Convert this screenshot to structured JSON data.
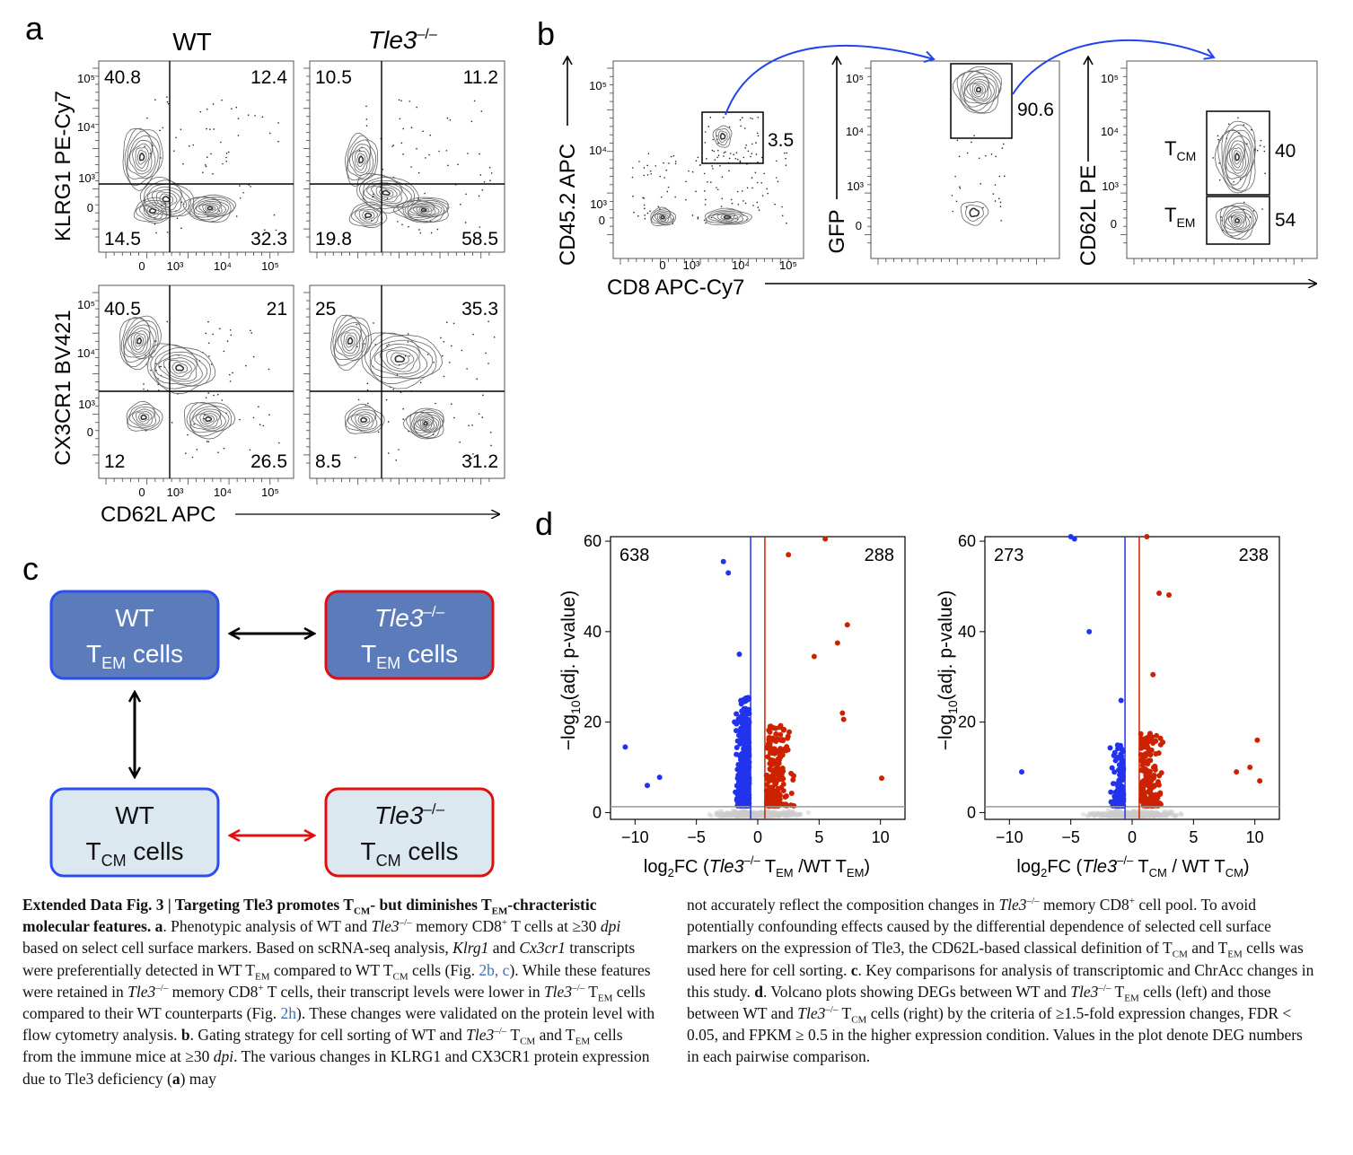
{
  "panel_letters": {
    "a": "a",
    "b": "b",
    "c": "c",
    "d": "d"
  },
  "panel_a": {
    "col_wt": "WT",
    "col_ko": "Tle3",
    "ko_sup": "–/–",
    "row1_ylabel": "KLRG1 PE-Cy7",
    "row2_ylabel": "CX3CR1 BV421",
    "xlabel": "CD62L APC",
    "plots": [
      {
        "q": [
          "40.8",
          "12.4",
          "14.5",
          "32.3"
        ]
      },
      {
        "q": [
          "10.5",
          "11.2",
          "19.8",
          "58.5"
        ]
      },
      {
        "q": [
          "40.5",
          "21",
          "12",
          "26.5"
        ]
      },
      {
        "q": [
          "25",
          "35.3",
          "8.5",
          "31.2"
        ]
      }
    ],
    "yticks": [
      "10⁵",
      "10⁴",
      "10³",
      "0"
    ],
    "xticks": [
      "0",
      "10³",
      "10⁴",
      "10⁵"
    ]
  },
  "panel_b": {
    "xlabel": "CD8 APC-Cy7",
    "p1_ylabel": "CD45.2 APC",
    "p1_gate": "3.5",
    "p2_ylabel": "GFP",
    "p2_gate": "90.6",
    "p3_ylabel": "CD62L PE",
    "tcm_main": "T",
    "tcm_sub": "CM",
    "tcm_value": "40",
    "tem_main": "T",
    "tem_sub": "EM",
    "tem_value": "54",
    "yticks": [
      "10⁵",
      "10⁴",
      "10³",
      "0"
    ],
    "xticks": [
      "0",
      "10³",
      "10⁴",
      "10⁵"
    ]
  },
  "panel_c": {
    "wt": "WT",
    "ko": "Tle3",
    "ko_sup": "–/–",
    "t": "T",
    "em": "EM",
    "cm": "CM",
    "cells": " cells",
    "colors": {
      "tem_fill": "#5b7bbb",
      "tcm_fill": "#dbe8f0",
      "wt_border": "#2b4ef0",
      "ko_border": "#e01010",
      "red_arrow": "#e01010"
    }
  },
  "panel_d": {
    "ylabel_pre": "−log",
    "ylabel_sub": "10",
    "ylabel_post": "(adj. p-value)",
    "left": {
      "n_down": "638",
      "n_up": "288",
      "xlabel_pre": "log",
      "xlabel_sub": "2",
      "xlabel_fc": "FC (",
      "xlabel_ko": "Tle3",
      "xlabel_sup": "–/–",
      "xlabel_t": " T",
      "xlabel_tsub": "EM",
      "xlabel_wt": " /WT T",
      "xlabel_wsub": "EM",
      "xlabel_end": ")"
    },
    "right": {
      "n_down": "273",
      "n_up": "238",
      "xlabel_pre": "log",
      "xlabel_sub": "2",
      "xlabel_fc": "FC (",
      "xlabel_ko": "Tle3",
      "xlabel_sup": "–/–",
      "xlabel_t": " T",
      "xlabel_tsub": "CM",
      "xlabel_wt": " / WT T",
      "xlabel_wsub": "CM",
      "xlabel_end": ")"
    },
    "xticks": [
      "−10",
      "−5",
      "0",
      "5",
      "10"
    ],
    "yticks": [
      "0",
      "20",
      "40",
      "60"
    ],
    "colors": {
      "down": "#2233ee",
      "up": "#cc2200",
      "ns": "#cccccc"
    }
  },
  "chart_data": [
    {
      "type": "scatter",
      "xlim": [
        -12,
        12
      ],
      "ylim": [
        0,
        61
      ],
      "annotations": [
        "638",
        "288"
      ],
      "thresholds_x": [
        -0.58,
        0.58
      ],
      "threshold_y": 1.3
    },
    {
      "type": "scatter",
      "xlim": [
        -12,
        12
      ],
      "ylim": [
        0,
        61
      ],
      "annotations": [
        "273",
        "238"
      ],
      "thresholds_x": [
        -0.58,
        0.58
      ],
      "threshold_y": 1.3
    }
  ],
  "caption": {
    "title_a": "Extended Data Fig. 3 | Targeting Tle3 promotes T",
    "title_cm": "CM",
    "title_b": "- but diminishes T",
    "title_em": "EM",
    "title_c": "-chracteristic molecular features.",
    "l1": " a",
    "l2": ". Phenotypic analysis of WT and ",
    "l3": "Tle3",
    "l3s": "–/–",
    "l4": " memory CD8",
    "l4s": "+",
    "l5": " T cells at ≥30 ",
    "l6": "dpi",
    "l7": " based on select cell surface markers. Based on scRNA-seq analysis, ",
    "l8": "Klrg1",
    "l9": " and ",
    "l10": "Cx3cr1",
    "l11": " transcripts were preferentially detected in WT T",
    "l11s": "EM",
    "l12": " compared to WT T",
    "l12s": "CM",
    "l13": " cells (Fig. ",
    "l13r": "2b, c",
    "l14": "). While these features were retained in ",
    "l15": "Tle3",
    "l15s": "–/–",
    "l16": " memory CD8",
    "l16s": "+",
    "l17": " T cells, their transcript levels were lower in ",
    "l18": "Tle3",
    "l18s": "–/–",
    "l19": " T",
    "l19s": "EM",
    "l20": " cells compared to their WT counterparts (Fig. ",
    "l20r": "2h",
    "l21": "). These changes were validated on the protein level with flow cytometry analysis. ",
    "l22": "b",
    "l23": ". Gating strategy for cell sorting of WT and ",
    "l24": "Tle3",
    "l24s": "–/–",
    "l25": " T",
    "l25s": "CM",
    "l26": " and T",
    "l26s": "EM",
    "l27": " cells from the immune mice at ≥30 ",
    "l28": "dpi",
    "l29": ". The various changes in KLRG1 and CX3CR1 protein expression due to Tle3 deficiency (",
    "l30": "a",
    "l31": ") may",
    "r1": "not accurately reflect the composition changes in ",
    "r2": "Tle3",
    "r2s": "–/–",
    "r3": " memory CD8",
    "r3s": "+",
    "r4": " cell pool. To avoid potentially confounding effects caused by the differential dependence of selected cell surface markers on the expression of Tle3, the CD62L-based classical definition of T",
    "r4s": "CM",
    "r5": " and T",
    "r5s": "EM",
    "r6": " cells was used here for cell sorting. ",
    "r7": "c",
    "r8": ". Key comparisons for analysis of transcriptomic and ChrAcc changes in this study. ",
    "r9": "d",
    "r10": ". Volcano plots showing DEGs between WT and ",
    "r11": "Tle3",
    "r11s": "–/–",
    "r12": " T",
    "r12s": "EM",
    "r13": " cells (left) and those between WT and ",
    "r14": "Tle3",
    "r14s": "–/–",
    "r15": " T",
    "r15s": "CM",
    "r16": " cells (right) by the criteria of ≥1.5-fold expression changes, FDR < 0.05, and FPKM ≥ 0.5 in the higher expression condition. Values in the plot denote DEG numbers in each pairwise comparison."
  }
}
